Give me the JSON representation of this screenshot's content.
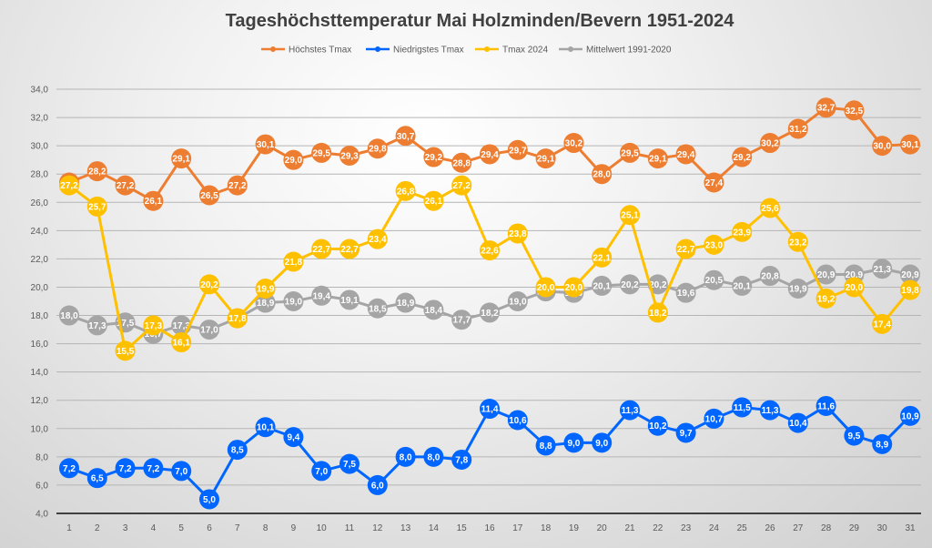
{
  "chart_data": {
    "type": "line",
    "title": "Tageshöchsttemperatur Mai Holzminden/Bevern 1951-2024",
    "xlabel": "",
    "ylabel": "",
    "x": [
      1,
      2,
      3,
      4,
      5,
      6,
      7,
      8,
      9,
      10,
      11,
      12,
      13,
      14,
      15,
      16,
      17,
      18,
      19,
      20,
      21,
      22,
      23,
      24,
      25,
      26,
      27,
      28,
      29,
      30,
      31
    ],
    "ylim": [
      4,
      34
    ],
    "yticks": [
      4,
      6,
      8,
      10,
      12,
      14,
      16,
      18,
      20,
      22,
      24,
      26,
      28,
      30,
      32,
      34
    ],
    "ytick_labels": [
      "4,0",
      "6,0",
      "8,0",
      "10,0",
      "12,0",
      "14,0",
      "16,0",
      "18,0",
      "20,0",
      "22,0",
      "24,0",
      "26,0",
      "28,0",
      "30,0",
      "32,0",
      "34,0"
    ],
    "grid": true,
    "legend_position": "top",
    "data_labels": true,
    "decimal_separator": ",",
    "series": [
      {
        "name": "Höchstes Tmax",
        "color": "#ED7D31",
        "values": [
          27.4,
          28.2,
          27.2,
          26.1,
          29.1,
          26.5,
          27.2,
          30.1,
          29.0,
          29.5,
          29.3,
          29.8,
          30.7,
          29.2,
          28.8,
          29.4,
          29.7,
          29.1,
          30.2,
          28.0,
          29.5,
          29.1,
          29.4,
          27.4,
          29.2,
          30.2,
          31.2,
          32.7,
          32.5,
          30.0,
          30.1
        ]
      },
      {
        "name": "Niedrigstes Tmax",
        "color": "#0066FF",
        "values": [
          7.2,
          6.5,
          7.2,
          7.2,
          7.0,
          5.0,
          8.5,
          10.1,
          9.4,
          7.0,
          7.5,
          6.0,
          8.0,
          8.0,
          7.8,
          11.4,
          10.6,
          8.8,
          9.0,
          9.0,
          11.3,
          10.2,
          9.7,
          10.7,
          11.5,
          11.3,
          10.4,
          11.6,
          9.5,
          8.9,
          10.9
        ]
      },
      {
        "name": "Tmax 2024",
        "color": "#FFC000",
        "values": [
          27.2,
          25.7,
          15.5,
          17.3,
          16.1,
          20.2,
          17.8,
          19.9,
          21.8,
          22.7,
          22.7,
          23.4,
          26.8,
          26.1,
          27.2,
          22.6,
          23.8,
          20.0,
          20.0,
          22.1,
          25.1,
          18.2,
          22.7,
          23.0,
          23.9,
          25.6,
          23.2,
          19.2,
          20.0,
          17.4,
          19.8
        ]
      },
      {
        "name": "Mittelwert 1991-2020",
        "color": "#A5A5A5",
        "values": [
          18.0,
          17.3,
          17.5,
          16.7,
          17.3,
          17.0,
          17.8,
          18.9,
          19.0,
          19.4,
          19.1,
          18.5,
          18.9,
          18.4,
          17.7,
          18.2,
          19.0,
          19.7,
          19.6,
          20.1,
          20.2,
          20.2,
          19.6,
          20.5,
          20.1,
          20.8,
          19.9,
          20.9,
          20.9,
          21.3,
          20.9
        ]
      }
    ]
  }
}
